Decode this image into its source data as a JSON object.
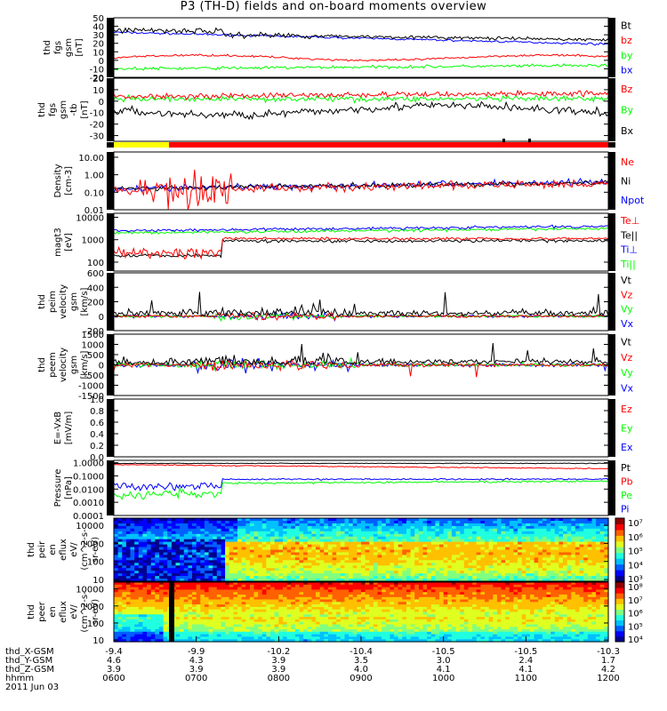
{
  "title": "P3 (TH-D) fields and on-board moments overview",
  "colors": {
    "black": "#000000",
    "red": "#ff0000",
    "green": "#00ff00",
    "blue": "#0000ff",
    "yellow": "#ffff00"
  },
  "chart_data": [
    {
      "type": "line",
      "name": "fgs-mag",
      "ylabel": [
        "thd",
        "fgs",
        "gsm",
        "[nT]"
      ],
      "ylim": [
        -20,
        50
      ],
      "yticks": [
        "50",
        "40",
        "30",
        "20",
        "10",
        "0",
        "-10",
        "-20"
      ],
      "ytick_values": [
        50,
        40,
        30,
        20,
        10,
        0,
        -10,
        -20
      ],
      "legend": [
        {
          "name": "Bt",
          "color": "#000000"
        },
        {
          "name": "bz",
          "color": "#ff0000"
        },
        {
          "name": "by",
          "color": "#00ff00"
        },
        {
          "name": "bx",
          "color": "#0000ff"
        }
      ]
    },
    {
      "type": "line",
      "name": "fgs-components",
      "ylabel": [
        "thd",
        "fgs",
        "gsm",
        "-tb",
        "[nT]"
      ],
      "ylim": [
        -35,
        20
      ],
      "yticks": [
        "20",
        "10",
        "0",
        "-10",
        "-20",
        "-30"
      ],
      "ytick_values": [
        20,
        10,
        0,
        -10,
        -20,
        -30
      ],
      "legend": [
        {
          "name": "Bz",
          "color": "#ff0000"
        },
        {
          "name": "By",
          "color": "#00ff00"
        },
        {
          "name": "Bx",
          "color": "#000000"
        }
      ]
    },
    {
      "type": "line",
      "name": "density",
      "log": true,
      "ylabel": [
        "Density",
        "[cm-3]"
      ],
      "ylim": [
        0.01,
        20
      ],
      "yticks": [
        "10.00",
        "1.00",
        "0.10",
        "0.01"
      ],
      "ytick_values": [
        10,
        1,
        0.1,
        0.01
      ],
      "legend": [
        {
          "name": "Ne",
          "color": "#ff0000"
        },
        {
          "name": "Ni",
          "color": "#000000"
        },
        {
          "name": "Npot",
          "color": "#0000ff"
        }
      ]
    },
    {
      "type": "line",
      "name": "temperature",
      "log": true,
      "ylabel": [
        "magt3",
        "[eV]"
      ],
      "ylim": [
        40,
        15000
      ],
      "yticks": [
        "10000",
        "1000",
        "100"
      ],
      "ytick_values": [
        10000,
        1000,
        100
      ],
      "legend": [
        {
          "name": "Te⊥",
          "color": "#ff0000"
        },
        {
          "name": "Te||",
          "color": "#000000"
        },
        {
          "name": "Ti⊥",
          "color": "#0000ff"
        },
        {
          "name": "Ti||",
          "color": "#00ff00"
        }
      ]
    },
    {
      "type": "line",
      "name": "peim-velocity",
      "ylabel": [
        "thd",
        "peim",
        "velocity",
        "gsm",
        "[km/s]"
      ],
      "ylim": [
        -200,
        600
      ],
      "yticks": [
        "600",
        "400",
        "200",
        "0",
        "-200"
      ],
      "ytick_values": [
        600,
        400,
        200,
        0,
        -200
      ],
      "legend": [
        {
          "name": "Vt",
          "color": "#000000"
        },
        {
          "name": "Vz",
          "color": "#ff0000"
        },
        {
          "name": "Vy",
          "color": "#00ff00"
        },
        {
          "name": "Vx",
          "color": "#0000ff"
        }
      ]
    },
    {
      "type": "line",
      "name": "peem-velocity",
      "ylabel": [
        "thd",
        "peem",
        "velocity",
        "gsm",
        "[km/s]"
      ],
      "ylim": [
        -1500,
        1500
      ],
      "yticks": [
        "1500",
        "1000",
        "500",
        "0",
        "-500",
        "-1000",
        "-1500"
      ],
      "ytick_values": [
        1500,
        1000,
        500,
        0,
        -500,
        -1000,
        -1500
      ],
      "legend": [
        {
          "name": "Vt",
          "color": "#000000"
        },
        {
          "name": "Vz",
          "color": "#ff0000"
        },
        {
          "name": "Vy",
          "color": "#00ff00"
        },
        {
          "name": "Vx",
          "color": "#0000ff"
        }
      ]
    },
    {
      "type": "line",
      "name": "e-field",
      "ylabel": [
        "E=-VxB",
        "[mV/m]"
      ],
      "ylim": [
        0,
        1
      ],
      "yticks": [
        "1.0",
        "0.8",
        "0.6",
        "0.4",
        "0.2",
        "0.0"
      ],
      "ytick_values": [
        1,
        0.8,
        0.6,
        0.4,
        0.2,
        0
      ],
      "legend": [
        {
          "name": "Ez",
          "color": "#ff0000"
        },
        {
          "name": "Ey",
          "color": "#00ff00"
        },
        {
          "name": "Ex",
          "color": "#0000ff"
        }
      ]
    },
    {
      "type": "line",
      "name": "pressure",
      "log": true,
      "ylabel": [
        "Pressure",
        "[nPa]"
      ],
      "ylim": [
        0.0001,
        1.5
      ],
      "yticks": [
        "1.0000",
        "0.1000",
        "0.0100",
        "0.0010",
        "0.0001"
      ],
      "ytick_values": [
        1,
        0.1,
        0.01,
        0.001,
        0.0001
      ],
      "legend": [
        {
          "name": "Pt",
          "color": "#000000"
        },
        {
          "name": "Pb",
          "color": "#ff0000"
        },
        {
          "name": "Pe",
          "color": "#00ff00"
        },
        {
          "name": "Pi",
          "color": "#0000ff"
        }
      ]
    },
    {
      "type": "heatmap",
      "name": "peir-eflux",
      "log": true,
      "ylabel": [
        "thd",
        "peir",
        "en",
        "eflux",
        "eV/",
        "(cm^2-s-",
        "sr-eV)"
      ],
      "ylim": [
        8,
        25000
      ],
      "yticks": [
        "10000",
        "1000",
        "100",
        "10"
      ],
      "ytick_values": [
        10000,
        1000,
        100,
        10
      ],
      "colorbar": [
        "10⁷",
        "10⁶",
        "10⁵",
        "10⁴",
        "10³"
      ]
    },
    {
      "type": "heatmap",
      "name": "peer-eflux",
      "log": true,
      "ylabel": [
        "thd",
        "peer",
        "en",
        "eflux",
        "eV/",
        "(cm^2-s-",
        "sr-eV)"
      ],
      "ylim": [
        8,
        25000
      ],
      "yticks": [
        "10000",
        "1000",
        "100",
        "10"
      ],
      "ytick_values": [
        10000,
        1000,
        100,
        10
      ],
      "colorbar": [
        "10⁸",
        "10⁷",
        "10⁶",
        "10⁵",
        "10⁴"
      ]
    }
  ],
  "xaxis": {
    "rows": [
      {
        "label": "thd_X-GSM",
        "values": [
          "-9.4",
          "-9.9",
          "-10.2",
          "-10.4",
          "-10.5",
          "-10.5",
          "-10.3"
        ]
      },
      {
        "label": "thd_Y-GSM",
        "values": [
          "4.6",
          "4.3",
          "3.9",
          "3.5",
          "3.0",
          "2.4",
          "1.7"
        ]
      },
      {
        "label": "thd_Z-GSM",
        "values": [
          "3.9",
          "3.9",
          "3.9",
          "4.0",
          "4.1",
          "4.1",
          "4.2"
        ]
      },
      {
        "label": "hhmm",
        "values": [
          "0600",
          "0700",
          "0800",
          "0900",
          "1000",
          "1100",
          "1200"
        ]
      }
    ],
    "date": "2011 Jun 03"
  }
}
